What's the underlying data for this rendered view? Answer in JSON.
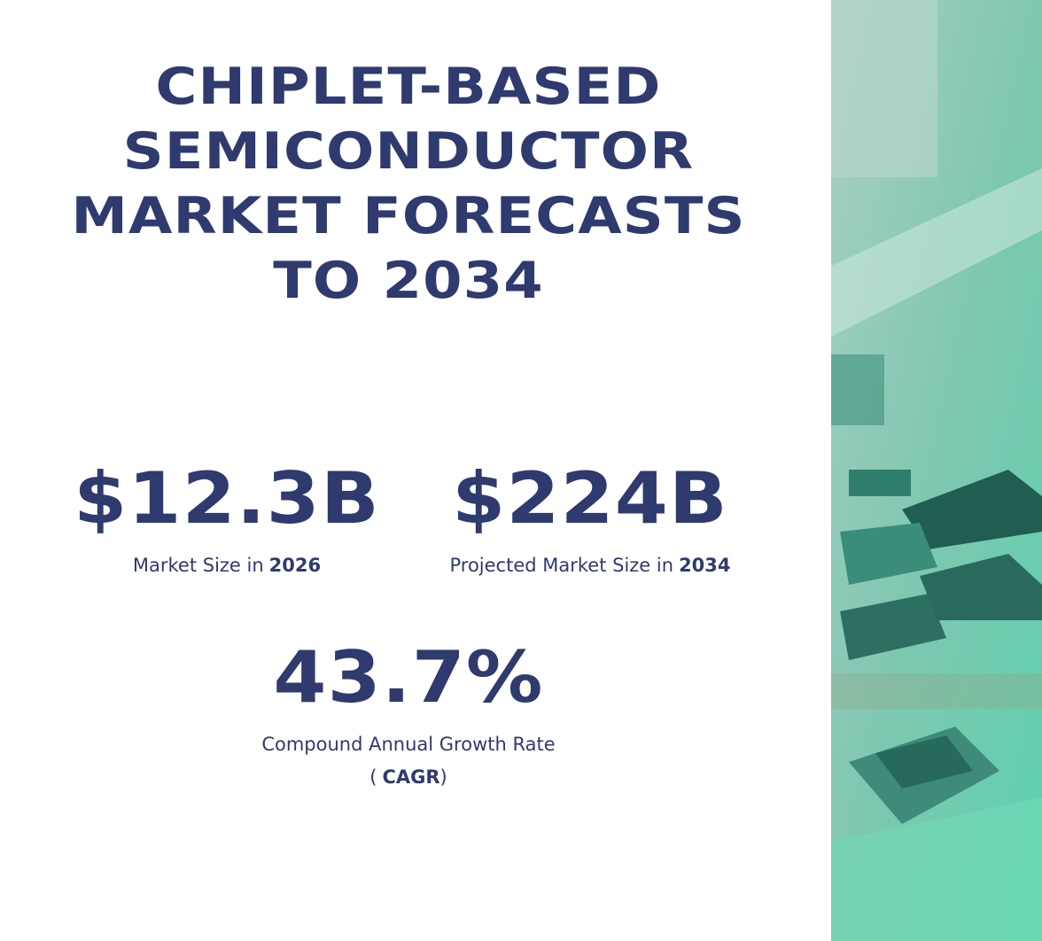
{
  "title": [
    "CHIPLET-BASED",
    "SEMICONDUCTOR",
    "MARKET FORECASTS",
    "TO 2034"
  ],
  "stats": [
    {
      "value": "$12.3B",
      "label": "Market Size in",
      "label_bold": "2026"
    },
    {
      "value": "$224B",
      "label": "Projected Market Size in",
      "label_bold": "2034"
    },
    {
      "value": "43.7%",
      "label": "Compound Annual Growth Rate",
      "label_open": "(",
      "label_bold": "CAGR",
      "label_close": ")"
    }
  ]
}
